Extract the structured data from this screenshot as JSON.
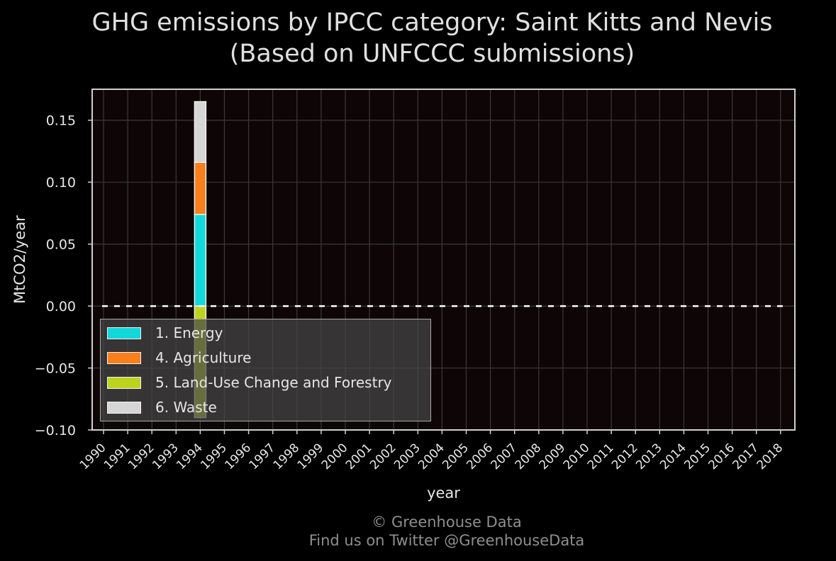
{
  "title_line1": "GHG emissions by IPCC category: Saint Kitts and Nevis",
  "title_line2": "(Based on UNFCCC submissions)",
  "credit_line1": "© Greenhouse Data",
  "credit_line2": "Find us on Twitter @GreenhouseData",
  "chart_data": {
    "type": "bar",
    "stacked": true,
    "xlabel": "year",
    "ylabel": "MtCO2/year",
    "ylim": [
      -0.1,
      0.175
    ],
    "yticks": [
      -0.1,
      -0.05,
      0.0,
      0.05,
      0.1,
      0.15
    ],
    "ytick_labels": [
      "−0.10",
      "−0.05",
      "0.00",
      "0.05",
      "0.10",
      "0.15"
    ],
    "categories": [
      "1990",
      "1991",
      "1992",
      "1993",
      "1994",
      "1995",
      "1996",
      "1997",
      "1998",
      "1999",
      "2000",
      "2001",
      "2002",
      "2003",
      "2004",
      "2005",
      "2006",
      "2007",
      "2008",
      "2009",
      "2010",
      "2011",
      "2012",
      "2013",
      "2014",
      "2015",
      "2016",
      "2017",
      "2018"
    ],
    "grid": true,
    "legend_position": "lower-left",
    "series": [
      {
        "name": "1. Energy",
        "color": "#13d8da",
        "values": [
          null,
          null,
          null,
          null,
          0.074,
          null,
          null,
          null,
          null,
          null,
          null,
          null,
          null,
          null,
          null,
          null,
          null,
          null,
          null,
          null,
          null,
          null,
          null,
          null,
          null,
          null,
          null,
          null,
          null
        ]
      },
      {
        "name": "4. Agriculture",
        "color": "#f97f1c",
        "values": [
          null,
          null,
          null,
          null,
          0.042,
          null,
          null,
          null,
          null,
          null,
          null,
          null,
          null,
          null,
          null,
          null,
          null,
          null,
          null,
          null,
          null,
          null,
          null,
          null,
          null,
          null,
          null,
          null,
          null
        ]
      },
      {
        "name": "5. Land-Use Change and Forestry",
        "color": "#bdd31e",
        "values": [
          null,
          null,
          null,
          null,
          -0.09,
          null,
          null,
          null,
          null,
          null,
          null,
          null,
          null,
          null,
          null,
          null,
          null,
          null,
          null,
          null,
          null,
          null,
          null,
          null,
          null,
          null,
          null,
          null,
          null
        ]
      },
      {
        "name": "6. Waste",
        "color": "#d6d6d6",
        "values": [
          null,
          null,
          null,
          null,
          0.049,
          null,
          null,
          null,
          null,
          null,
          null,
          null,
          null,
          null,
          null,
          null,
          null,
          null,
          null,
          null,
          null,
          null,
          null,
          null,
          null,
          null,
          null,
          null,
          null
        ]
      }
    ]
  }
}
